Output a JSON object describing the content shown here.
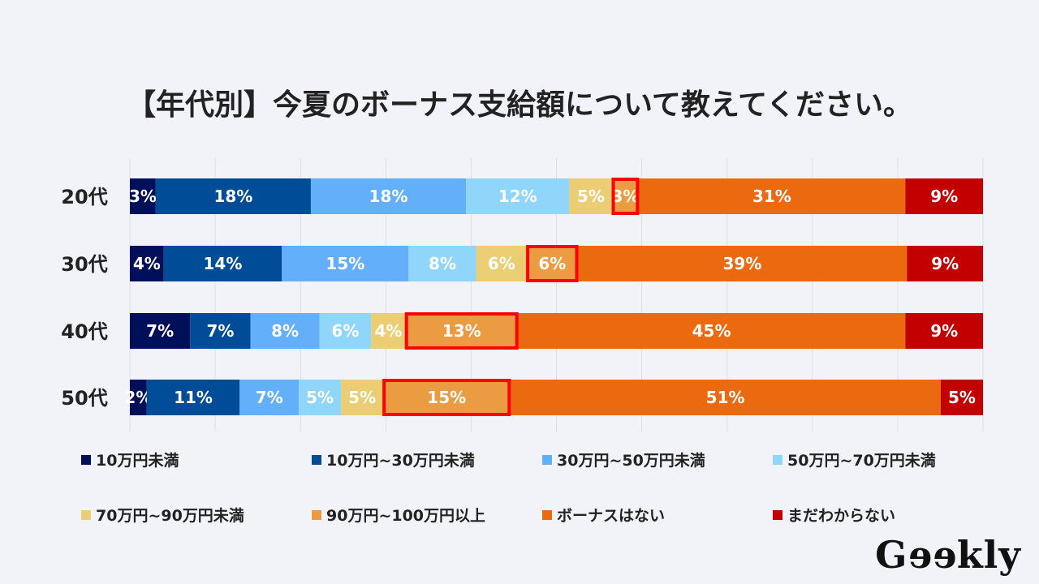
{
  "title": "【年代別】今夏のボーナス支給額について教えてください。",
  "logo": {
    "text_g": "G",
    "text_ee": "ee",
    "text_rest": "kly"
  },
  "chart_data": {
    "type": "bar",
    "orientation": "horizontal",
    "stacked": true,
    "title": "【年代別】今夏のボーナス支給額について教えてください。",
    "xlabel": "",
    "ylabel": "",
    "xlim": [
      0,
      100
    ],
    "grid": true,
    "legend_position": "bottom",
    "categories": [
      "20代",
      "30代",
      "40代",
      "50代"
    ],
    "series": [
      {
        "name": "10万円未満",
        "color": "#000f5a",
        "values": [
          3,
          4,
          7,
          2
        ]
      },
      {
        "name": "10万円~30万円未満",
        "color": "#004c97",
        "values": [
          18,
          14,
          7,
          11
        ]
      },
      {
        "name": "30万円~50万円未満",
        "color": "#64affa",
        "values": [
          18,
          15,
          8,
          7
        ]
      },
      {
        "name": "50万円~70万円未満",
        "color": "#8fd6fa",
        "values": [
          12,
          8,
          6,
          5
        ]
      },
      {
        "name": "70万円~90万円未満",
        "color": "#ebcd73",
        "values": [
          5,
          6,
          4,
          5
        ]
      },
      {
        "name": "90万円~100万円以上",
        "color": "#eb9b41",
        "values": [
          3,
          6,
          13,
          15
        ],
        "highlighted": true
      },
      {
        "name": "ボーナスはない",
        "color": "#eb690f",
        "values": [
          31,
          39,
          45,
          51
        ]
      },
      {
        "name": "まだわからない",
        "color": "#c30000",
        "values": [
          9,
          9,
          9,
          5
        ]
      }
    ],
    "highlight_color": "#ff0000",
    "value_suffix": "%"
  }
}
